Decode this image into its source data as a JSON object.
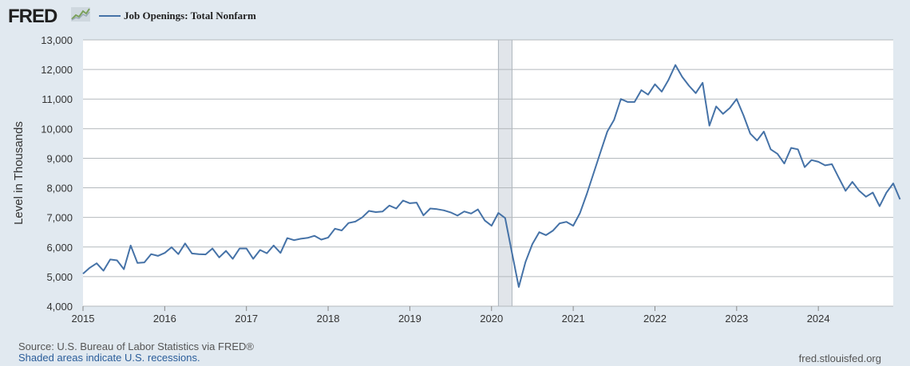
{
  "header": {
    "logo_text": "FRED",
    "logo_icon": "fred-trend-icon",
    "series_label": "Job Openings: Total Nonfarm"
  },
  "footer": {
    "source": "Source: U.S. Bureau of Labor Statistics via FRED®",
    "recession_note": "Shaded areas indicate U.S. recessions.",
    "url": "fred.stlouisfed.org"
  },
  "colors": {
    "line": "#4572a7",
    "recession": "#e1e5ea",
    "background": "#e1e9f0",
    "plot": "#ffffff",
    "grid": "#b4b9bd"
  },
  "chart_data": {
    "type": "line",
    "title": "",
    "xlabel": "",
    "ylabel": "Level in Thousands",
    "ylim": [
      4000,
      13000
    ],
    "yticks": [
      4000,
      5000,
      6000,
      7000,
      8000,
      9000,
      10000,
      11000,
      12000,
      13000
    ],
    "ytick_labels": [
      "4,000",
      "5,000",
      "6,000",
      "7,000",
      "8,000",
      "9,000",
      "10,000",
      "11,000",
      "12,000",
      "13,000"
    ],
    "xlim": [
      "2015-01",
      "2024-12"
    ],
    "xtick_labels": [
      "2015",
      "2016",
      "2017",
      "2018",
      "2019",
      "2020",
      "2021",
      "2022",
      "2023",
      "2024"
    ],
    "grid": "horizontal",
    "legend": "top",
    "recessions": [
      {
        "start": "2020-02",
        "end": "2020-04"
      }
    ],
    "series": [
      {
        "name": "Job Openings: Total Nonfarm",
        "start": "2015-01",
        "frequency": "monthly",
        "values": [
          5100,
          5300,
          5450,
          5200,
          5580,
          5550,
          5250,
          6050,
          5460,
          5480,
          5760,
          5700,
          5800,
          5990,
          5760,
          6120,
          5780,
          5760,
          5750,
          5950,
          5650,
          5870,
          5600,
          5950,
          5950,
          5600,
          5900,
          5790,
          6050,
          5800,
          6300,
          6230,
          6280,
          6310,
          6380,
          6250,
          6320,
          6620,
          6560,
          6810,
          6860,
          7000,
          7220,
          7180,
          7200,
          7400,
          7300,
          7570,
          7480,
          7500,
          7070,
          7300,
          7280,
          7240,
          7170,
          7060,
          7200,
          7130,
          7270,
          6900,
          6720,
          7150,
          6980,
          5800,
          4650,
          5500,
          6100,
          6500,
          6400,
          6550,
          6800,
          6850,
          6720,
          7150,
          7800,
          8500,
          9200,
          9900,
          10300,
          11000,
          10900,
          10900,
          11300,
          11150,
          11500,
          11250,
          11650,
          12150,
          11750,
          11450,
          11200,
          11550,
          10100,
          10750,
          10500,
          10700,
          11000,
          10450,
          9830,
          9600,
          9900,
          9300,
          9150,
          8820,
          9350,
          9300,
          8700,
          8940,
          8880,
          8760,
          8800,
          8340,
          7900,
          8200,
          7900,
          7700,
          7840,
          7380,
          7840,
          8150,
          7610
        ]
      }
    ]
  }
}
